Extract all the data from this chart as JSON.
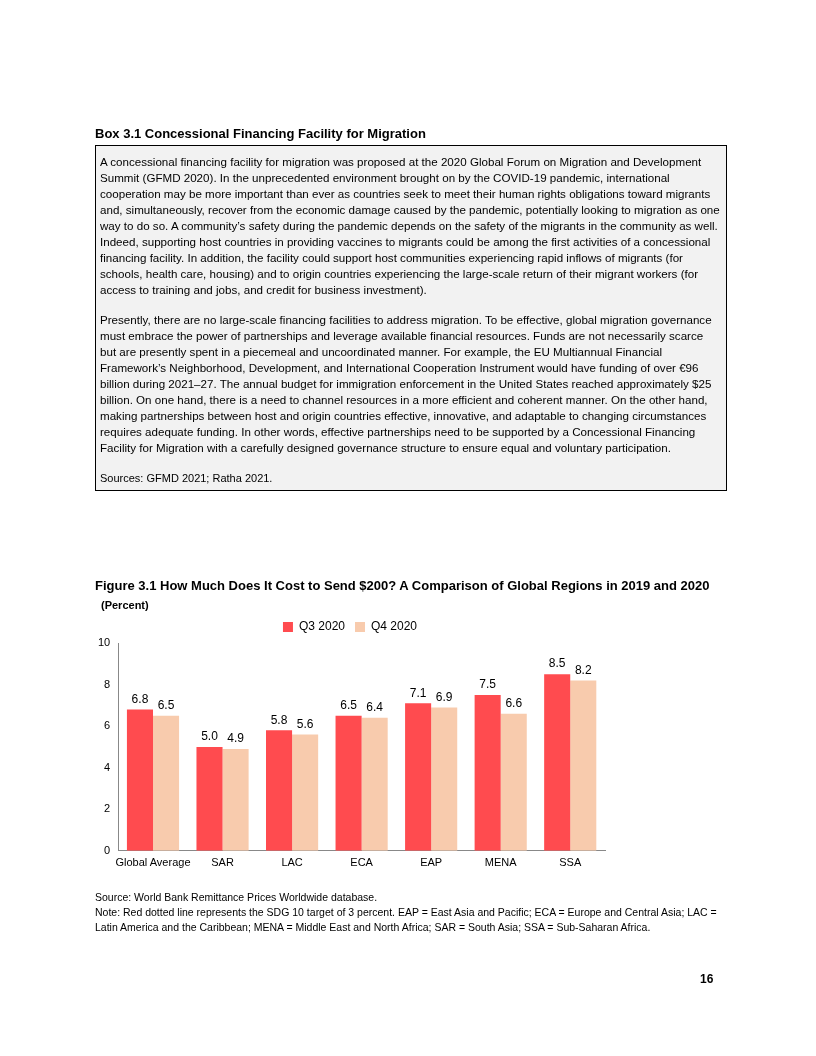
{
  "chart_data": [
    {
      "type": "other",
      "title": "Box 3.1 Concessional Financing Facility for Migration",
      "annotations": [
        "A concessional financing facility for migration was proposed at the 2020 Global Forum on Migration and Development Summit (GFMD 2020). In the unprecedented environment brought on by the COVID-19 pandemic, international cooperation may be more important than ever as countries seek to meet their human rights obligations toward migrants and, simultaneously, recover from the economic damage caused by the pandemic, potentially looking to migration as one way to do so. A community’s safety during the pandemic depends on the safety of the migrants in the community as well. Indeed, supporting host countries in providing vaccines to migrants could be among the first activities of a concessional financing facility. In addition, the facility could support host communities experiencing rapid inflows of migrants (for schools, health care, housing) and to origin countries experiencing the large-scale return of their migrant workers (for access to training and jobs, and credit for business investment).",
        "Presently, there are no large-scale financing facilities to address migration. To be effective, global migration governance must embrace the power of partnerships and leverage available financial resources. Funds are not necessarily scarce but are presently spent in a piecemeal and uncoordinated manner. For example, the EU Multiannual Financial Framework’s Neighborhood, Development, and International Cooperation Instrument would have funding of over €96 billion during 2021–27. The annual budget for immigration enforcement in the United States reached approximately $25 billion. On one hand, there is a need to channel resources in a more efficient and coherent manner. On the other hand, making partnerships between host and origin countries effective, innovative, and adaptable to changing circumstances requires adequate funding. In other words, effective partnerships need to be supported by a Concessional Financing Facility for Migration with a carefully designed governance structure to ensure equal and voluntary participation.",
        "Sources: GFMD 2021; Ratha 2021.",
        "16"
      ]
    },
    {
      "type": "bar",
      "title": "Figure 3.1 How Much Does It Cost to Send $200? A Comparison of Global Regions in 2019 and 2020",
      "ylabel": "(Percent)",
      "categories": [
        "Global Average",
        "SAR",
        "LAC",
        "ECA",
        "EAP",
        "MENA",
        "SSA"
      ],
      "series": [
        {
          "name": "Q3 2020",
          "color": "#ff4b4f",
          "values": [
            6.8,
            5.0,
            5.8,
            6.5,
            7.1,
            7.5,
            8.5
          ],
          "value_labels": [
            "6.8",
            "5.0",
            "5.8",
            "6.5",
            "7.1",
            "7.5",
            "8.5"
          ]
        },
        {
          "name": "Q4 2020",
          "color": "#f8cbad",
          "values": [
            6.5,
            4.9,
            5.6,
            6.4,
            6.9,
            6.6,
            8.2
          ],
          "value_labels": [
            "6.5",
            "4.9",
            "5.6",
            "6.4",
            "6.9",
            "6.6",
            "8.2"
          ]
        }
      ],
      "ylim": [
        0,
        10
      ],
      "yticks": [
        0,
        2,
        4,
        6,
        8,
        10
      ],
      "grid": false,
      "legend": "top",
      "annotations": [
        "Source: World Bank Remittance Prices Worldwide database.",
        "Note: Red dotted line represents the SDG 10 target of 3 percent. EAP = East Asia and Pacific; ECA = Europe and Central Asia; LAC = Latin America and the Caribbean; MENA = Middle East and North Africa; SAR = South Asia; SSA = Sub-Saharan Africa."
      ]
    }
  ]
}
